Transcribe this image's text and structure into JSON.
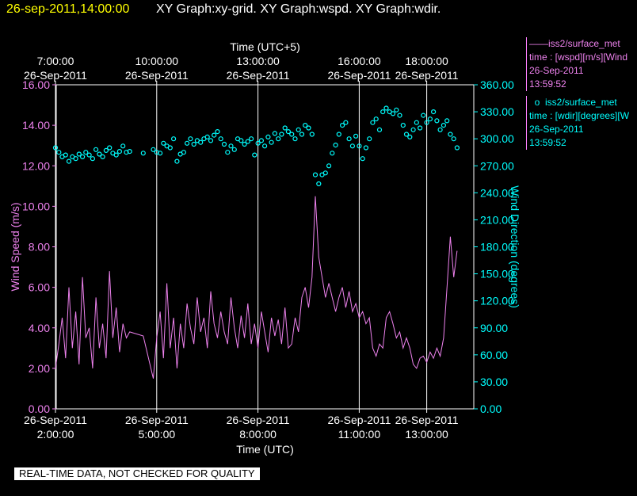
{
  "header": {
    "datetime": "26-sep-2011,14:00:00",
    "graphs": "XY Graph:xy-grid.  XY Graph:wspd.  XY Graph:wdir."
  },
  "legend": [
    {
      "lines": [
        "——iss2/surface_met",
        "time : [wspd][m/s][Wind",
        "26-Sep-2011",
        "13:59:52"
      ],
      "color": "#ee82ee"
    },
    {
      "lines": [
        "  o  iss2/surface_met",
        "time : [wdir][degrees][W",
        "26-Sep-2011",
        "13:59:52"
      ],
      "color": "#00ffff"
    }
  ],
  "footer_note": "REAL-TIME DATA, NOT CHECKED FOR QUALITY",
  "chart_data": {
    "type": "line",
    "top_axis": {
      "label": "Time (UTC+5)",
      "ticks": [
        {
          "t": 2,
          "time": "7:00:00",
          "date": "26-Sep-2011"
        },
        {
          "t": 5,
          "time": "10:00:00",
          "date": "26-Sep-2011"
        },
        {
          "t": 8,
          "time": "13:00:00",
          "date": "26-Sep-2011"
        },
        {
          "t": 11,
          "time": "16:00:00",
          "date": "26-Sep-2011"
        },
        {
          "t": 13,
          "time": "18:00:00",
          "date": "26-Sep-2011"
        }
      ]
    },
    "bottom_axis": {
      "label": "Time (UTC)",
      "ticks": [
        {
          "t": 2,
          "date": "26-Sep-2011",
          "time": "2:00:00"
        },
        {
          "t": 5,
          "date": "26-Sep-2011",
          "time": "5:00:00"
        },
        {
          "t": 8,
          "date": "26-Sep-2011",
          "time": "8:00:00"
        },
        {
          "t": 11,
          "date": "26-Sep-2011",
          "time": "11:00:00"
        },
        {
          "t": 13,
          "date": "26-Sep-2011",
          "time": "13:00:00"
        }
      ]
    },
    "xlim": [
      2.0,
      14.0
    ],
    "left_axis": {
      "label": "Wind Speed (m/s)",
      "ylim": [
        0,
        16
      ],
      "ticks": [
        "0.00",
        "2.00",
        "4.00",
        "6.00",
        "8.00",
        "10.00",
        "12.00",
        "14.00",
        "16.00"
      ],
      "color": "#ee82ee"
    },
    "right_axis": {
      "label": "Wind Direction (degrees)",
      "ylim": [
        0,
        360
      ],
      "ticks": [
        "0.00",
        "30.00",
        "60.00",
        "90.00",
        "120.00",
        "150.00",
        "180.00",
        "210.00",
        "240.00",
        "270.00",
        "300.00",
        "330.00",
        "360.00"
      ],
      "color": "#00ffff"
    },
    "grid": "vertical lines at labeled time ticks",
    "series": [
      {
        "name": "[wspd][m/s]",
        "style": "line",
        "color": "#ee82ee",
        "x": [
          2.0,
          2.1,
          2.2,
          2.3,
          2.4,
          2.5,
          2.6,
          2.7,
          2.8,
          2.9,
          3.0,
          3.1,
          3.2,
          3.3,
          3.4,
          3.5,
          3.6,
          3.7,
          3.8,
          3.9,
          4.0,
          4.1,
          4.2,
          4.6,
          4.9,
          5.0,
          5.1,
          5.2,
          5.3,
          5.4,
          5.5,
          5.6,
          5.7,
          5.8,
          5.9,
          6.0,
          6.1,
          6.2,
          6.3,
          6.4,
          6.5,
          6.6,
          6.7,
          6.8,
          6.9,
          7.0,
          7.1,
          7.2,
          7.3,
          7.4,
          7.5,
          7.6,
          7.7,
          7.8,
          7.9,
          8.0,
          8.1,
          8.2,
          8.3,
          8.4,
          8.5,
          8.6,
          8.7,
          8.8,
          8.9,
          9.0,
          9.1,
          9.2,
          9.3,
          9.4,
          9.5,
          9.6,
          9.7,
          9.8,
          9.9,
          10.0,
          10.1,
          10.2,
          10.3,
          10.4,
          10.5,
          10.6,
          10.7,
          10.8,
          10.9,
          11.0,
          11.1,
          11.2,
          11.3,
          11.4,
          11.5,
          11.6,
          11.7,
          11.8,
          11.9,
          12.0,
          12.1,
          12.2,
          12.3,
          12.4,
          12.5,
          12.6,
          12.7,
          12.8,
          12.9,
          13.0,
          13.1,
          13.2,
          13.3,
          13.4,
          13.5,
          13.6,
          13.7,
          13.8,
          13.9
        ],
        "y": [
          2.0,
          3.2,
          4.5,
          2.5,
          6.0,
          3.0,
          4.8,
          2.2,
          6.5,
          3.5,
          4.0,
          2.0,
          5.5,
          3.0,
          4.2,
          2.5,
          6.8,
          3.5,
          5.0,
          2.8,
          4.2,
          3.5,
          3.8,
          3.6,
          1.5,
          3.5,
          4.8,
          2.5,
          6.2,
          3.0,
          4.5,
          2.0,
          4.2,
          3.0,
          5.2,
          4.0,
          3.2,
          5.5,
          3.8,
          4.5,
          3.0,
          5.8,
          4.2,
          3.5,
          4.8,
          3.8,
          3.2,
          5.5,
          4.0,
          3.0,
          4.6,
          3.5,
          5.2,
          3.2,
          4.2,
          3.0,
          4.8,
          3.8,
          2.8,
          4.5,
          3.6,
          4.4,
          3.2,
          5.0,
          3.0,
          3.2,
          4.5,
          3.8,
          5.5,
          6.0,
          5.0,
          6.5,
          10.5,
          7.5,
          6.5,
          5.5,
          6.2,
          5.5,
          4.8,
          5.5,
          6.0,
          5.0,
          5.8,
          4.8,
          5.2,
          4.5,
          4.8,
          4.2,
          4.5,
          3.0,
          2.6,
          3.2,
          3.0,
          4.5,
          4.8,
          4.2,
          3.5,
          3.8,
          3.0,
          3.5,
          3.0,
          2.2,
          2.0,
          2.5,
          2.6,
          2.3,
          2.8,
          2.5,
          3.0,
          2.6,
          3.5,
          6.0,
          8.5,
          6.5,
          7.8
        ]
      },
      {
        "name": "[wdir][degrees]",
        "style": "markers",
        "color": "#00ffff",
        "x": [
          2.0,
          2.1,
          2.2,
          2.3,
          2.4,
          2.5,
          2.6,
          2.7,
          2.8,
          2.9,
          3.0,
          3.1,
          3.2,
          3.3,
          3.4,
          3.5,
          3.6,
          3.7,
          3.8,
          3.9,
          4.0,
          4.1,
          4.2,
          4.6,
          4.9,
          5.0,
          5.1,
          5.2,
          5.3,
          5.4,
          5.5,
          5.6,
          5.7,
          5.8,
          5.9,
          6.0,
          6.1,
          6.2,
          6.3,
          6.4,
          6.5,
          6.6,
          6.7,
          6.8,
          6.9,
          7.0,
          7.1,
          7.2,
          7.3,
          7.4,
          7.5,
          7.6,
          7.7,
          7.8,
          7.9,
          8.0,
          8.1,
          8.2,
          8.3,
          8.4,
          8.5,
          8.6,
          8.7,
          8.8,
          8.9,
          9.0,
          9.1,
          9.2,
          9.3,
          9.4,
          9.5,
          9.6,
          9.7,
          9.8,
          9.9,
          10.0,
          10.1,
          10.2,
          10.3,
          10.4,
          10.5,
          10.6,
          10.7,
          10.8,
          10.9,
          11.0,
          11.1,
          11.2,
          11.3,
          11.4,
          11.5,
          11.6,
          11.7,
          11.8,
          11.9,
          12.0,
          12.1,
          12.2,
          12.3,
          12.4,
          12.5,
          12.6,
          12.7,
          12.8,
          12.9,
          13.0,
          13.1,
          13.2,
          13.3,
          13.4,
          13.5,
          13.6,
          13.7,
          13.8,
          13.9
        ],
        "y": [
          290,
          285,
          280,
          282,
          275,
          280,
          278,
          283,
          280,
          285,
          282,
          278,
          288,
          283,
          280,
          287,
          290,
          284,
          282,
          286,
          292,
          285,
          286,
          284,
          288,
          285,
          284,
          295,
          292,
          290,
          300,
          275,
          283,
          285,
          295,
          300,
          294,
          298,
          296,
          300,
          302,
          298,
          304,
          308,
          300,
          294,
          285,
          292,
          288,
          300,
          298,
          294,
          297,
          300,
          282,
          295,
          298,
          292,
          302,
          296,
          306,
          300,
          305,
          312,
          308,
          305,
          300,
          310,
          305,
          315,
          312,
          305,
          260,
          250,
          260,
          262,
          270,
          284,
          293,
          305,
          315,
          318,
          300,
          292,
          303,
          292,
          278,
          290,
          300,
          318,
          322,
          310,
          330,
          334,
          330,
          328,
          332,
          326,
          315,
          305,
          302,
          310,
          318,
          312,
          326,
          318,
          322,
          330,
          320,
          310,
          315,
          320,
          305,
          300,
          290
        ]
      }
    ]
  }
}
